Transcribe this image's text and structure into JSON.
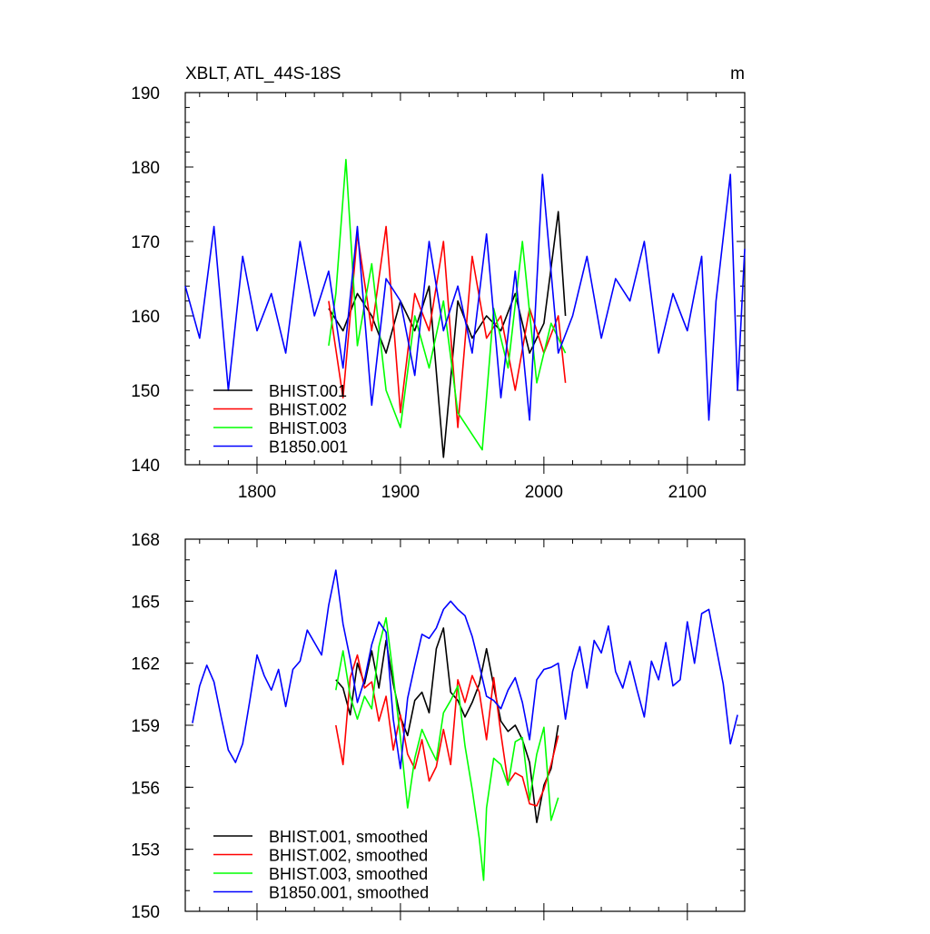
{
  "chart_data": [
    {
      "type": "line",
      "title": "XBLT, ATL_44S-18S",
      "units": "m",
      "xlim": [
        1750,
        2140
      ],
      "ylim": [
        140,
        190
      ],
      "xticks": [
        1800,
        1900,
        2000,
        2100
      ],
      "yticks": [
        140,
        150,
        160,
        170,
        180,
        190
      ],
      "grid": false,
      "legend_position": "bottom-left",
      "series": [
        {
          "name": "BHIST.001",
          "color": "#000000",
          "x": [
            1850,
            1860,
            1870,
            1880,
            1890,
            1900,
            1910,
            1920,
            1930,
            1940,
            1950,
            1960,
            1970,
            1980,
            1990,
            2000,
            2010,
            2015
          ],
          "y": [
            161,
            158,
            163,
            160,
            155,
            162,
            158,
            164,
            141,
            162,
            157,
            160,
            158,
            163,
            155,
            159,
            174,
            160
          ]
        },
        {
          "name": "BHIST.002",
          "color": "#ff0000",
          "x": [
            1850,
            1860,
            1870,
            1880,
            1890,
            1900,
            1910,
            1920,
            1930,
            1940,
            1950,
            1960,
            1970,
            1980,
            1990,
            2000,
            2010,
            2015
          ],
          "y": [
            162,
            149,
            171,
            158,
            172,
            147,
            163,
            158,
            170,
            145,
            168,
            157,
            160,
            150,
            161,
            155,
            160,
            151
          ]
        },
        {
          "name": "BHIST.003",
          "color": "#00ff00",
          "x": [
            1850,
            1855,
            1862,
            1870,
            1880,
            1890,
            1900,
            1910,
            1920,
            1930,
            1940,
            1957,
            1965,
            1975,
            1985,
            1995,
            2005,
            2015
          ],
          "y": [
            156,
            163,
            181,
            156,
            167,
            150,
            145,
            160,
            153,
            162,
            147,
            142,
            161,
            153,
            170,
            151,
            159,
            155
          ]
        },
        {
          "name": "B1850.001",
          "color": "#0000ff",
          "x": [
            1750,
            1760,
            1770,
            1780,
            1790,
            1800,
            1810,
            1820,
            1830,
            1840,
            1850,
            1860,
            1870,
            1880,
            1890,
            1900,
            1910,
            1920,
            1930,
            1940,
            1950,
            1960,
            1970,
            1980,
            1990,
            1999,
            2010,
            2020,
            2030,
            2040,
            2050,
            2060,
            2070,
            2080,
            2090,
            2100,
            2110,
            2115,
            2120,
            2130,
            2135,
            2140
          ],
          "y": [
            164,
            157,
            172,
            150,
            168,
            158,
            163,
            155,
            170,
            160,
            166,
            153,
            172,
            148,
            165,
            162,
            152,
            170,
            158,
            164,
            155,
            171,
            149,
            166,
            146,
            179,
            155,
            160,
            168,
            157,
            165,
            162,
            170,
            155,
            163,
            158,
            168,
            146,
            162,
            179,
            150,
            169
          ]
        }
      ]
    },
    {
      "type": "line",
      "xlim": [
        1750,
        2140
      ],
      "ylim": [
        150,
        168
      ],
      "yticks": [
        150,
        153,
        156,
        159,
        162,
        165,
        168
      ],
      "grid": false,
      "legend_position": "bottom-left",
      "series": [
        {
          "name": "BHIST.001, smoothed",
          "color": "#000000",
          "x": [
            1855,
            1860,
            1865,
            1870,
            1875,
            1880,
            1885,
            1890,
            1895,
            1900,
            1905,
            1910,
            1915,
            1920,
            1925,
            1930,
            1935,
            1940,
            1945,
            1950,
            1955,
            1960,
            1965,
            1970,
            1975,
            1980,
            1985,
            1990,
            1995,
            2000,
            2005,
            2010
          ],
          "y": [
            161.2,
            160.8,
            159.5,
            162.0,
            161.0,
            162.6,
            160.8,
            163.1,
            161.0,
            159.4,
            158.5,
            160.2,
            160.6,
            159.6,
            162.7,
            163.7,
            160.6,
            160.2,
            159.4,
            160.1,
            161.0,
            162.7,
            160.9,
            159.2,
            158.7,
            159.0,
            158.3,
            157.2,
            154.3,
            156.1,
            156.9,
            159.0
          ]
        },
        {
          "name": "BHIST.002, smoothed",
          "color": "#ff0000",
          "x": [
            1855,
            1860,
            1865,
            1870,
            1875,
            1880,
            1885,
            1890,
            1895,
            1900,
            1905,
            1910,
            1915,
            1920,
            1925,
            1930,
            1935,
            1940,
            1945,
            1950,
            1955,
            1960,
            1965,
            1970,
            1975,
            1980,
            1985,
            1990,
            1995,
            2000,
            2005,
            2010
          ],
          "y": [
            159.0,
            157.1,
            161.3,
            162.4,
            160.8,
            161.1,
            159.2,
            160.4,
            157.8,
            159.5,
            157.6,
            156.9,
            158.3,
            156.3,
            157.0,
            158.8,
            157.1,
            161.2,
            160.1,
            161.4,
            160.6,
            158.3,
            161.3,
            158.6,
            156.2,
            156.7,
            156.5,
            155.2,
            155.1,
            155.9,
            157.1,
            158.5
          ]
        },
        {
          "name": "BHIST.003, smoothed",
          "color": "#00ff00",
          "x": [
            1855,
            1860,
            1865,
            1870,
            1875,
            1880,
            1885,
            1890,
            1895,
            1900,
            1905,
            1910,
            1915,
            1920,
            1925,
            1930,
            1935,
            1940,
            1945,
            1950,
            1955,
            1958,
            1960,
            1965,
            1970,
            1975,
            1980,
            1985,
            1990,
            1995,
            2000,
            2005,
            2010
          ],
          "y": [
            160.7,
            162.6,
            160.4,
            159.3,
            160.4,
            159.8,
            162.8,
            164.2,
            161.4,
            158.4,
            155.0,
            157.4,
            158.8,
            158.0,
            157.3,
            159.6,
            160.2,
            160.9,
            158.0,
            155.9,
            153.5,
            151.5,
            155.0,
            157.4,
            157.1,
            156.1,
            158.2,
            158.4,
            155.4,
            157.6,
            158.9,
            154.4,
            155.5
          ]
        },
        {
          "name": "B1850.001, smoothed",
          "color": "#0000ff",
          "x": [
            1755,
            1760,
            1765,
            1770,
            1775,
            1780,
            1785,
            1790,
            1795,
            1800,
            1805,
            1810,
            1815,
            1820,
            1825,
            1830,
            1835,
            1840,
            1845,
            1850,
            1855,
            1860,
            1865,
            1870,
            1875,
            1880,
            1885,
            1890,
            1895,
            1900,
            1905,
            1910,
            1915,
            1920,
            1925,
            1930,
            1935,
            1940,
            1945,
            1950,
            1955,
            1960,
            1965,
            1970,
            1975,
            1980,
            1985,
            1990,
            1995,
            2000,
            2005,
            2010,
            2015,
            2020,
            2025,
            2030,
            2035,
            2040,
            2045,
            2050,
            2055,
            2060,
            2065,
            2070,
            2075,
            2080,
            2085,
            2090,
            2095,
            2100,
            2105,
            2110,
            2115,
            2120,
            2125,
            2130,
            2135
          ],
          "y": [
            159.1,
            160.9,
            161.9,
            161.1,
            159.4,
            157.8,
            157.2,
            158.1,
            160.2,
            162.4,
            161.4,
            160.7,
            161.7,
            159.9,
            161.7,
            162.1,
            163.6,
            163.0,
            162.4,
            164.8,
            166.5,
            163.9,
            162.2,
            160.1,
            161.2,
            162.9,
            164.0,
            163.5,
            159.3,
            156.9,
            160.3,
            161.9,
            163.4,
            163.2,
            163.7,
            164.6,
            165.0,
            164.6,
            164.3,
            163.3,
            161.9,
            160.4,
            160.2,
            159.8,
            160.7,
            161.3,
            160.1,
            158.3,
            161.2,
            161.7,
            161.8,
            162.0,
            159.3,
            161.6,
            162.8,
            160.8,
            163.1,
            162.5,
            163.8,
            161.6,
            160.8,
            162.1,
            160.7,
            159.4,
            162.1,
            161.2,
            163.0,
            160.9,
            161.2,
            164.0,
            162.0,
            164.4,
            164.6,
            162.8,
            161.0,
            158.1,
            159.5
          ]
        }
      ]
    }
  ]
}
